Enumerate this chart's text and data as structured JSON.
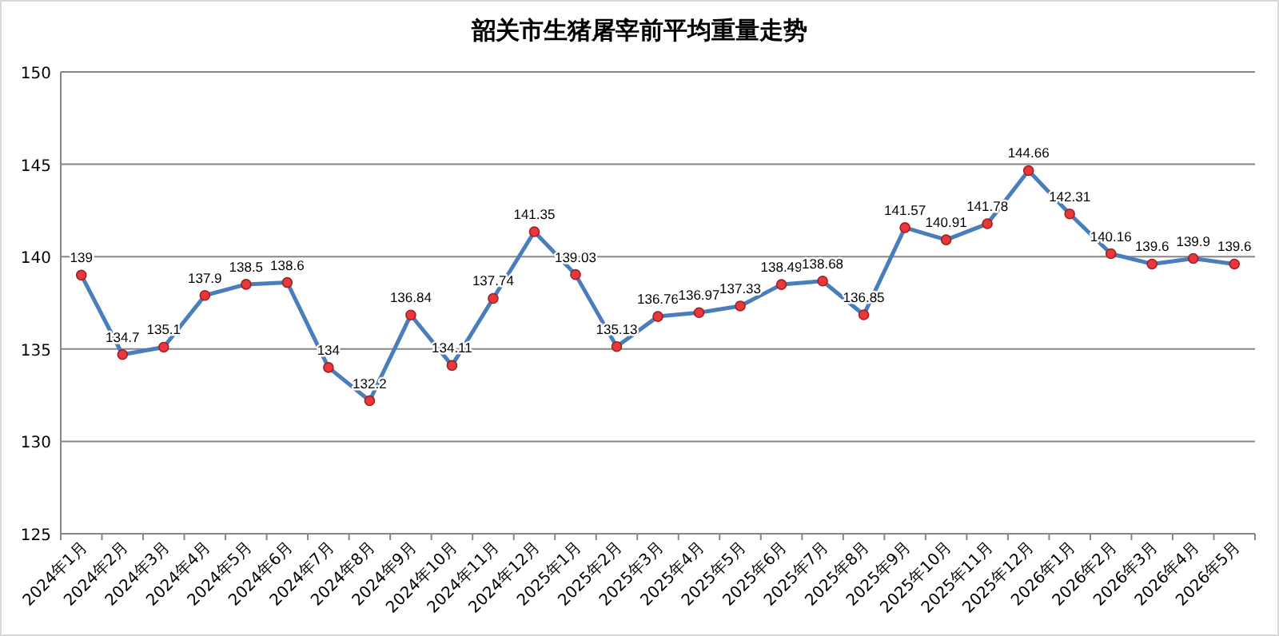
{
  "chart_data": {
    "type": "line",
    "title": "韶关市生猪屠宰前平均重量走势",
    "categories": [
      "2024年1月",
      "2024年2月",
      "2024年3月",
      "2024年4月",
      "2024年5月",
      "2024年6月",
      "2024年7月",
      "2024年8月",
      "2024年9月",
      "2024年10月",
      "2024年11月",
      "2024年12月",
      "2025年1月",
      "2025年2月",
      "2025年3月",
      "2025年4月",
      "2025年5月",
      "2025年6月",
      "2025年7月",
      "2025年8月",
      "2025年9月",
      "2025年10月",
      "2025年11月",
      "2025年12月",
      "2026年1月",
      "2026年2月",
      "2026年3月",
      "2026年4月",
      "2026年5月"
    ],
    "series": [
      {
        "color": "#4a7ebb",
        "values": [
          139,
          134.7,
          135.1,
          137.9,
          138.5,
          138.6,
          134,
          132.2,
          136.84,
          134.11,
          137.74,
          141.35,
          139.03,
          135.13,
          136.76,
          136.97,
          137.33,
          138.49,
          138.68,
          136.85,
          141.57,
          140.91,
          141.78,
          144.66,
          142.31,
          140.16,
          139.6,
          139.9,
          139.6
        ]
      }
    ],
    "ylim": [
      125,
      150
    ],
    "yticks": [
      125,
      130,
      135,
      140,
      145,
      150
    ],
    "grid": "y",
    "marker": "circle",
    "line_style": "solid",
    "data_labels": true
  }
}
